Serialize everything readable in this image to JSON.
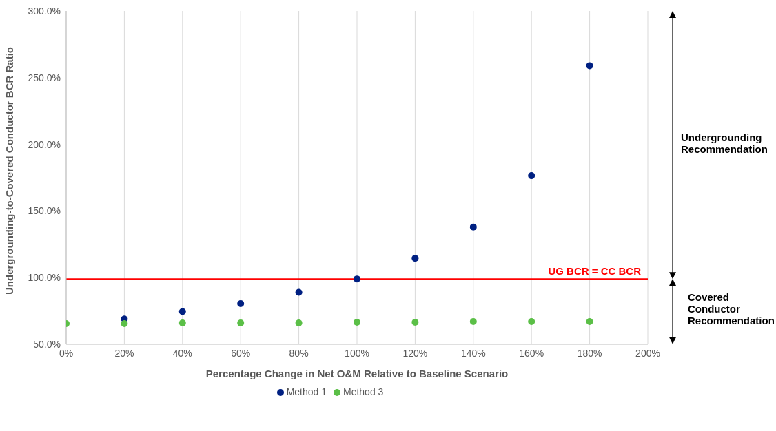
{
  "chart_data": {
    "type": "scatter",
    "xlabel": "Percentage Change in Net O&M Relative to Baseline Scenario",
    "ylabel": "Undergrounding-to-Covered Conductor BCR Ratio",
    "x": [
      0,
      20,
      40,
      60,
      80,
      100,
      120,
      140,
      160,
      180
    ],
    "series": [
      {
        "name": "Method 1",
        "color": "#002082",
        "values": [
          null,
          69,
          74.5,
          80.5,
          89,
          99,
          114.5,
          138,
          176.5,
          259
        ]
      },
      {
        "name": "Method 3",
        "color": "#5bbf47",
        "values": [
          65.5,
          65.5,
          66,
          66,
          66,
          66.5,
          66.5,
          67,
          67,
          67
        ]
      }
    ],
    "xlim": [
      0,
      200
    ],
    "xticks": [
      {
        "value": 0,
        "label": "0%"
      },
      {
        "value": 20,
        "label": "20%"
      },
      {
        "value": 40,
        "label": "40%"
      },
      {
        "value": 60,
        "label": "60%"
      },
      {
        "value": 80,
        "label": "80%"
      },
      {
        "value": 100,
        "label": "100%"
      },
      {
        "value": 120,
        "label": "120%"
      },
      {
        "value": 140,
        "label": "140%"
      },
      {
        "value": 160,
        "label": "160%"
      },
      {
        "value": 180,
        "label": "180%"
      },
      {
        "value": 200,
        "label": "200%"
      }
    ],
    "ylim": [
      50,
      300
    ],
    "yticks": [
      {
        "value": 50,
        "label": "50.0%"
      },
      {
        "value": 100,
        "label": "100.0%"
      },
      {
        "value": 150,
        "label": "150.0%"
      },
      {
        "value": 200,
        "label": "200.0%"
      },
      {
        "value": 250,
        "label": "250.0%"
      },
      {
        "value": 300,
        "label": "300.0%"
      }
    ],
    "ref_lines": [
      {
        "axis": "y",
        "value": 99,
        "label": "UG BCR = CC BCR",
        "color": "#ff0000"
      }
    ],
    "annotations": [
      "Undergrounding Recommendation",
      "Covered Conductor Recommendation"
    ],
    "grid": "x",
    "legend": "bottom",
    "marker": "circle"
  }
}
